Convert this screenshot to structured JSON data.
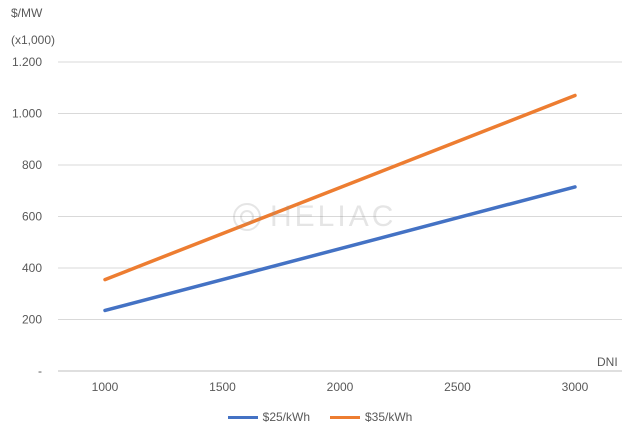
{
  "chart_data": {
    "type": "line",
    "ylabel": "$/MW (x1,000)",
    "ylabel_lines": [
      "$/MW",
      "(x1,000)"
    ],
    "xlabel": "DNI",
    "x": [
      1000,
      3000
    ],
    "xticks": [
      "1000",
      "1500",
      "2000",
      "2500",
      "3000"
    ],
    "xtick_values": [
      1000,
      1500,
      2000,
      2500,
      3000
    ],
    "yticks": [
      "-",
      "200",
      "400",
      "600",
      "800",
      "1.000",
      "1.200"
    ],
    "ytick_values": [
      0,
      200,
      400,
      600,
      800,
      1000,
      1200
    ],
    "xlim": [
      800,
      3200
    ],
    "ylim": [
      0,
      1200
    ],
    "grid": true,
    "legend_position": "bottom",
    "series": [
      {
        "name": "$25/kWh",
        "color": "#4472C4",
        "x": [
          1000,
          3000
        ],
        "values": [
          235,
          715
        ]
      },
      {
        "name": "$35/kWh",
        "color": "#ED7D31",
        "x": [
          1000,
          3000
        ],
        "values": [
          355,
          1070
        ]
      }
    ]
  },
  "watermark": {
    "text": "HELIAC"
  }
}
